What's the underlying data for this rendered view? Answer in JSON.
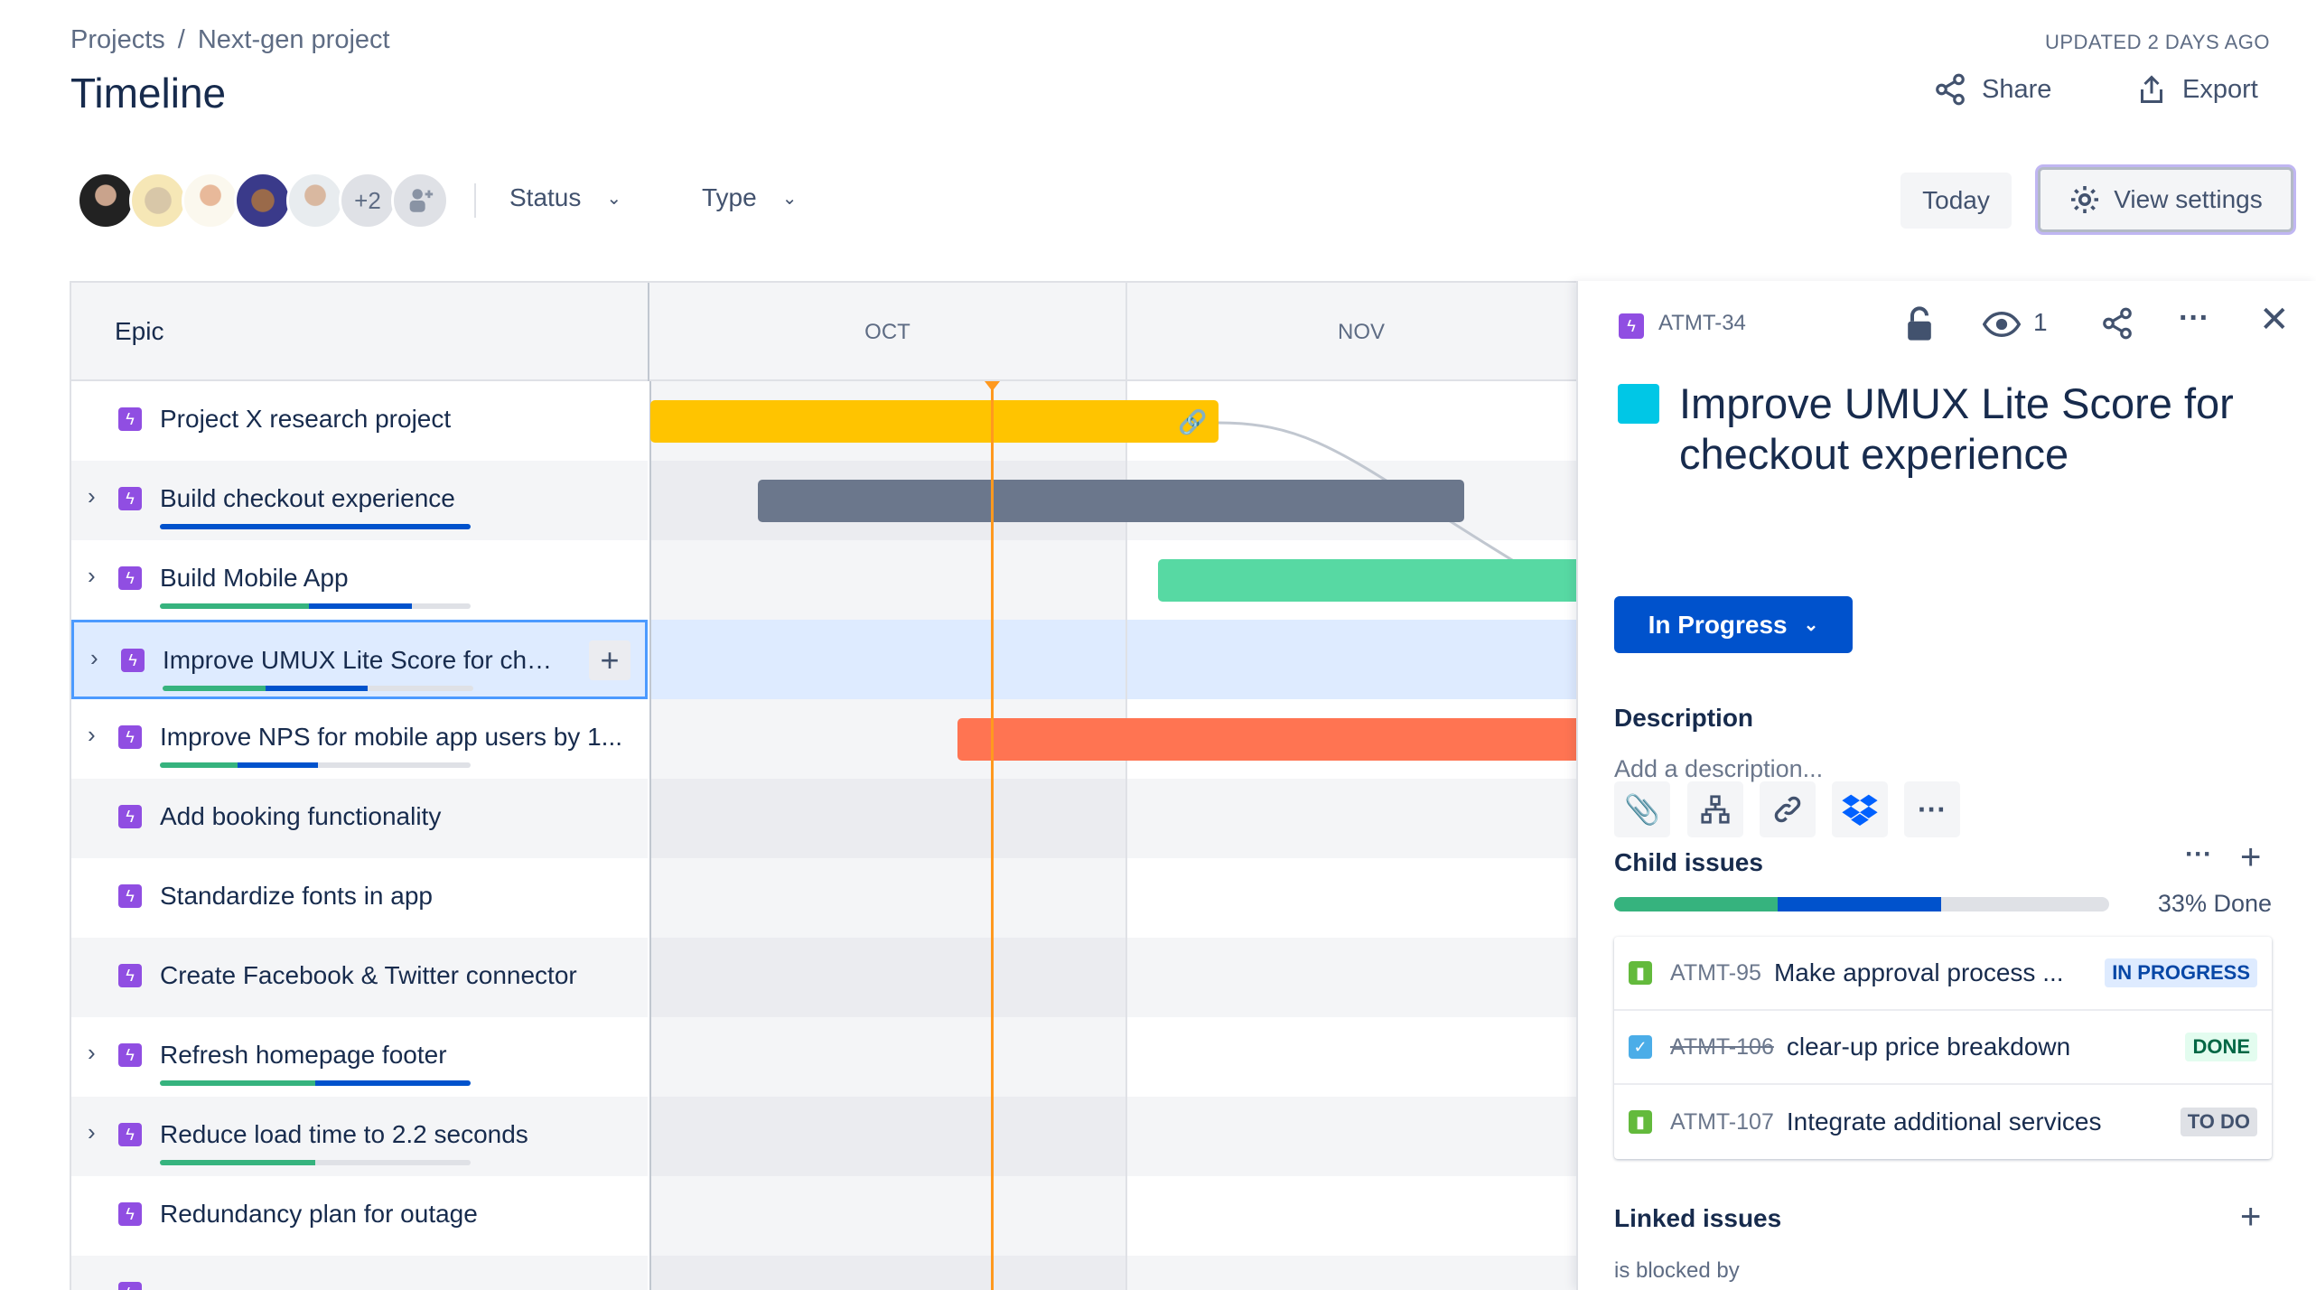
{
  "breadcrumb": {
    "root": "Projects",
    "sep": "/",
    "project": "Next-gen project"
  },
  "page_title": "Timeline",
  "updated": "UPDATED 2 DAYS AGO",
  "header_actions": {
    "share": "Share",
    "export": "Export"
  },
  "toolbar": {
    "avatar_overflow": "+2",
    "status": "Status",
    "type": "Type",
    "today": "Today",
    "view_settings": "View settings"
  },
  "grid": {
    "epic_header": "Epic",
    "months": [
      "OCT",
      "NOV"
    ]
  },
  "epics": [
    {
      "label": "Project X research project",
      "expandable": false,
      "progress": null
    },
    {
      "label": "Build checkout experience",
      "expandable": true,
      "progress": {
        "done": 0,
        "in_progress": 1.0
      }
    },
    {
      "label": "Build Mobile App",
      "expandable": true,
      "progress": {
        "done": 0.48,
        "in_progress": 0.33
      }
    },
    {
      "label": "Improve UMUX Lite Score for che...",
      "expandable": true,
      "progress": {
        "done": 0.33,
        "in_progress": 0.33
      },
      "selected": true
    },
    {
      "label": "Improve NPS for mobile app users by 1...",
      "expandable": true,
      "progress": {
        "done": 0.25,
        "in_progress": 0.26
      }
    },
    {
      "label": "Add booking functionality",
      "expandable": false,
      "progress": null
    },
    {
      "label": "Standardize fonts in app",
      "expandable": false,
      "progress": null
    },
    {
      "label": "Create Facebook & Twitter connector",
      "expandable": false,
      "progress": null
    },
    {
      "label": "Refresh homepage footer",
      "expandable": true,
      "progress": {
        "done": 0.5,
        "in_progress": 0.5
      }
    },
    {
      "label": "Reduce load time to 2.2 seconds",
      "expandable": true,
      "progress": {
        "done": 0.5,
        "in_progress": 0
      }
    },
    {
      "label": "Redundancy plan for outage",
      "expandable": false,
      "progress": null
    },
    {
      "label": "",
      "expandable": false,
      "progress": null
    }
  ],
  "colors": {
    "epic": "#904ee2",
    "today_line": "#ff991f",
    "done": "#36b37e",
    "in_progress": "#0052cc",
    "selected_row": "#deebff",
    "brand": "#0052cc",
    "issue_color": "#00c7e6"
  },
  "bars": [
    {
      "row": 0,
      "color": "#ffc400",
      "link_icon": true
    },
    {
      "row": 1,
      "color": "#6b778c"
    },
    {
      "row": 2,
      "color": "#57d9a3"
    },
    {
      "row": 4,
      "color": "#ff7452"
    }
  ],
  "panel": {
    "issue_key": "ATMT-34",
    "watchers": "1",
    "title_line1": "Improve UMUX Lite Score for",
    "title_line2": "checkout experience",
    "status": "In Progress",
    "description_label": "Description",
    "description_placeholder": "Add a description...",
    "child_issues_label": "Child issues",
    "child_progress_text": "33% Done",
    "child_progress": {
      "done": 0.33,
      "in_progress": 0.33
    },
    "children": [
      {
        "key": "ATMT-95",
        "summary": "Make approval process ...",
        "status": "IN PROGRESS",
        "type": "story",
        "done": false
      },
      {
        "key": "ATMT-106",
        "summary": "clear-up price breakdown",
        "status": "DONE",
        "type": "task",
        "done": true
      },
      {
        "key": "ATMT-107",
        "summary": "Integrate additional services",
        "status": "TO DO",
        "type": "story",
        "done": false
      }
    ],
    "linked_issues_label": "Linked issues",
    "is_blocked_by": "is blocked by"
  }
}
